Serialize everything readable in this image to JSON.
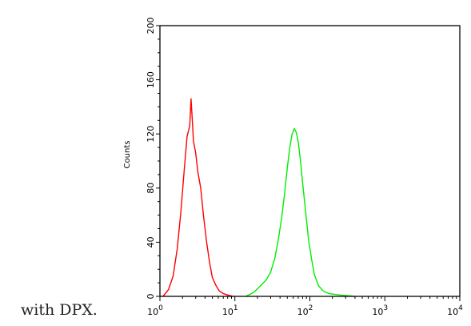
{
  "caption": "with DPX.",
  "chart_data": {
    "type": "line",
    "title": "",
    "xlabel": "",
    "ylabel": "Counts",
    "x_scale": "log",
    "xlim": [
      1,
      10000
    ],
    "ylim": [
      0,
      200
    ],
    "y_ticks": [
      "0",
      "40",
      "80",
      "120",
      "160",
      "200"
    ],
    "x_ticks": [
      {
        "base": "10",
        "exp": "0"
      },
      {
        "base": "10",
        "exp": "1"
      },
      {
        "base": "10",
        "exp": "2"
      },
      {
        "base": "10",
        "exp": "3"
      },
      {
        "base": "10",
        "exp": "4"
      }
    ],
    "grid": false,
    "legend": "none",
    "series": [
      {
        "color": "#ff0000",
        "x": [
          1.1,
          1.3,
          1.5,
          1.7,
          1.9,
          2.1,
          2.3,
          2.5,
          2.6,
          2.7,
          2.8,
          3.0,
          3.2,
          3.5,
          3.8,
          4.2,
          4.6,
          5.0,
          5.6,
          6.2,
          7.0,
          8.0,
          9.5
        ],
        "y": [
          0,
          5,
          15,
          35,
          62,
          92,
          118,
          126,
          146,
          131,
          115,
          106,
          92,
          80,
          60,
          40,
          25,
          14,
          8,
          4,
          2,
          1,
          0
        ]
      },
      {
        "color": "#00ee00",
        "x": [
          14,
          18,
          22,
          26,
          30,
          34,
          38,
          42,
          46,
          50,
          54,
          58,
          62,
          66,
          70,
          75,
          80,
          88,
          96,
          105,
          115,
          130,
          150,
          180,
          250,
          400
        ],
        "y": [
          0,
          3,
          8,
          12,
          18,
          28,
          42,
          58,
          76,
          95,
          110,
          120,
          124,
          121,
          114,
          100,
          84,
          62,
          42,
          28,
          16,
          8,
          4,
          2,
          1,
          0
        ]
      }
    ]
  }
}
